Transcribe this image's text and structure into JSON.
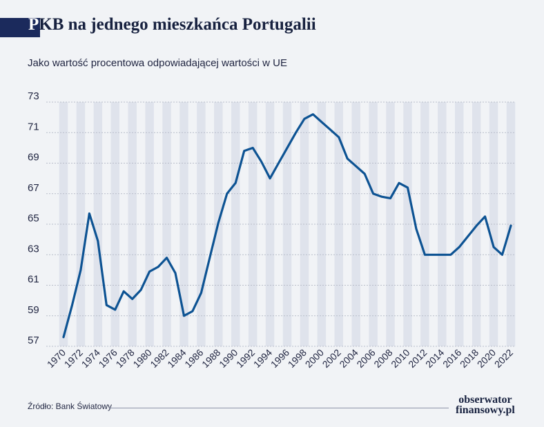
{
  "header": {
    "title_first_letter": "P",
    "title_rest": "KB na jednego mieszkańca Portugalii",
    "subtitle": "Jako wartość procentowa odpowiadającej wartości w UE"
  },
  "footer": {
    "source": "Źródło: Bank Światowy",
    "logo_line1": "obserwator",
    "logo_line2": "finansowy.pl"
  },
  "colors": {
    "line": "#0d5393",
    "stripe": "#dfe3ec",
    "grid": "#b8bdc9",
    "text": "#1f2440",
    "title_block": "#1b2a5c"
  },
  "chart_data": {
    "type": "line",
    "title": "PKB na jednego mieszkańca Portugalii",
    "subtitle": "Jako wartość procentowa odpowiadającej wartości w UE",
    "xlabel": "",
    "ylabel": "",
    "ylim": [
      57,
      73
    ],
    "yticks": [
      57,
      59,
      61,
      63,
      65,
      67,
      69,
      71,
      73
    ],
    "xlim": [
      1970,
      2022
    ],
    "xticks": [
      1970,
      1972,
      1974,
      1976,
      1978,
      1980,
      1982,
      1984,
      1986,
      1988,
      1990,
      1992,
      1994,
      1996,
      1998,
      2000,
      2002,
      2004,
      2006,
      2008,
      2010,
      2012,
      2014,
      2016,
      2018,
      2020,
      2022
    ],
    "grid": true,
    "legend": "none",
    "series": [
      {
        "x": [
          1970,
          1971,
          1972,
          1973,
          1974,
          1975,
          1976,
          1977,
          1978,
          1979,
          1980,
          1981,
          1982,
          1983,
          1984,
          1985,
          1986,
          1987,
          1988,
          1989,
          1990,
          1991,
          1992,
          1993,
          1994,
          1995,
          1996,
          1997,
          1998,
          1999,
          2000,
          2001,
          2002,
          2003,
          2004,
          2005,
          2006,
          2007,
          2008,
          2009,
          2010,
          2011,
          2012,
          2013,
          2014,
          2015,
          2016,
          2017,
          2018,
          2019,
          2020,
          2021,
          2022
        ],
        "values": [
          57.6,
          59.7,
          62.0,
          65.7,
          63.9,
          59.7,
          59.4,
          60.6,
          60.1,
          60.7,
          61.9,
          62.2,
          62.8,
          61.8,
          59.0,
          59.3,
          60.5,
          62.8,
          65.1,
          67.0,
          67.7,
          69.8,
          70.0,
          69.1,
          68.0,
          69.0,
          70.0,
          71.0,
          71.9,
          72.2,
          71.7,
          71.2,
          70.7,
          69.3,
          68.8,
          68.3,
          67.0,
          66.8,
          66.7,
          67.7,
          67.4,
          64.7,
          63.0,
          63.0,
          63.0,
          63.0,
          63.5,
          64.2,
          64.9,
          65.5,
          63.5,
          63.0,
          64.9
        ]
      }
    ]
  }
}
